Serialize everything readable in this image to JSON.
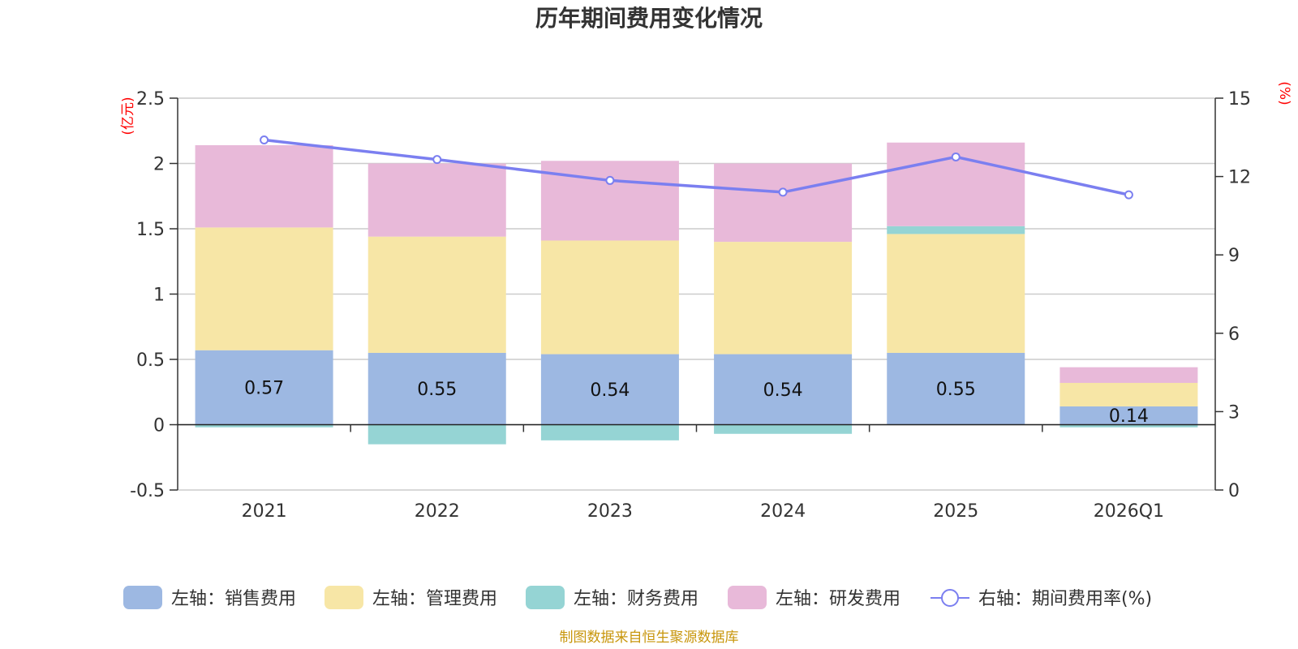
{
  "chart_data": {
    "type": "bar",
    "title": "历年期间费用变化情况",
    "categories": [
      "2021",
      "2022",
      "2023",
      "2024",
      "2025",
      "2026Q1"
    ],
    "left_axis": {
      "unit": "(亿元)",
      "ylim": [
        -0.5,
        2.5
      ],
      "ticks": [
        "-0.5",
        "0",
        "0.5",
        "1",
        "1.5",
        "2",
        "2.5"
      ]
    },
    "right_axis": {
      "unit": "(%)",
      "ylim": [
        0,
        15
      ],
      "ticks": [
        "0",
        "3",
        "6",
        "9",
        "12",
        "15"
      ]
    },
    "series": [
      {
        "name": "左轴：销售费用",
        "axis": "left",
        "kind": "bar",
        "color": "#9db8e2",
        "values": [
          0.57,
          0.55,
          0.54,
          0.54,
          0.55,
          0.14
        ],
        "labels": [
          "0.57",
          "0.55",
          "0.54",
          "0.54",
          "0.55",
          "0.14"
        ]
      },
      {
        "name": "左轴：管理费用",
        "axis": "left",
        "kind": "bar",
        "color": "#f7e6a6",
        "values": [
          0.94,
          0.89,
          0.87,
          0.86,
          0.91,
          0.18
        ]
      },
      {
        "name": "左轴：财务费用",
        "axis": "left",
        "kind": "bar",
        "color": "#95d4d4",
        "values": [
          -0.02,
          -0.15,
          -0.12,
          -0.07,
          0.06,
          -0.02
        ]
      },
      {
        "name": "左轴：研发费用",
        "axis": "left",
        "kind": "bar",
        "color": "#e8b9d9",
        "values": [
          0.63,
          0.56,
          0.61,
          0.6,
          0.64,
          0.12
        ]
      },
      {
        "name": "右轴：期间费用率(%)",
        "axis": "right",
        "kind": "line",
        "color": "#7b7ff0",
        "values": [
          13.4,
          12.65,
          11.85,
          11.4,
          12.75,
          11.3
        ]
      }
    ],
    "legend_position": "bottom",
    "grid": true
  },
  "source_note": "制图数据来自恒生聚源数据库"
}
